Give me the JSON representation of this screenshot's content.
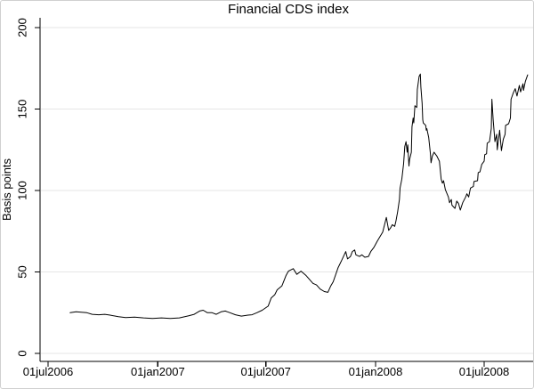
{
  "window": {
    "background": "#ffffff",
    "border_color": "#d0d0d0"
  },
  "chart_data": {
    "type": "line",
    "title": "Financial CDS index",
    "xlabel": "",
    "ylabel": "Basis points",
    "ylim": [
      0,
      200
    ],
    "y_ticks": [
      0,
      50,
      100,
      150,
      200
    ],
    "x_ticks": [
      {
        "label": "01jul2006",
        "date": "2006-07-01"
      },
      {
        "label": "01jan2007",
        "date": "2007-01-01"
      },
      {
        "label": "01jul2007",
        "date": "2007-07-01"
      },
      {
        "label": "01jan2008",
        "date": "2008-01-01"
      },
      {
        "label": "01jul2008",
        "date": "2008-07-01"
      }
    ],
    "grid": "horizontal-only",
    "legend": "none",
    "line_color": "#000000",
    "grid_color": "#e6e6e6",
    "axis_color": "#000000",
    "text_color": "#000000",
    "series": [
      {
        "name": "Financial CDS index",
        "points": [
          [
            "2006-08-07",
            25
          ],
          [
            "2006-08-17",
            25.5
          ],
          [
            "2006-08-28",
            25.2
          ],
          [
            "2006-09-04",
            25
          ],
          [
            "2006-09-13",
            24
          ],
          [
            "2006-09-24",
            23.7
          ],
          [
            "2006-10-04",
            24
          ],
          [
            "2006-10-13",
            23.5
          ],
          [
            "2006-10-27",
            22.5
          ],
          [
            "2006-11-08",
            22
          ],
          [
            "2006-11-23",
            22.3
          ],
          [
            "2006-12-08",
            21.8
          ],
          [
            "2006-12-23",
            21.5
          ],
          [
            "2007-01-07",
            21.8
          ],
          [
            "2007-01-22",
            21.5
          ],
          [
            "2007-02-06",
            21.8
          ],
          [
            "2007-02-21",
            23
          ],
          [
            "2007-03-03",
            24
          ],
          [
            "2007-03-12",
            26
          ],
          [
            "2007-03-18",
            26.5
          ],
          [
            "2007-03-25",
            25
          ],
          [
            "2007-04-02",
            25
          ],
          [
            "2007-04-09",
            24
          ],
          [
            "2007-04-17",
            25.5
          ],
          [
            "2007-04-24",
            26
          ],
          [
            "2007-05-02",
            25
          ],
          [
            "2007-05-11",
            23.7
          ],
          [
            "2007-05-21",
            22.9
          ],
          [
            "2007-06-01",
            23.5
          ],
          [
            "2007-06-08",
            23.7
          ],
          [
            "2007-06-16",
            25
          ],
          [
            "2007-06-25",
            26.5
          ],
          [
            "2007-07-05",
            29
          ],
          [
            "2007-07-10",
            34
          ],
          [
            "2007-07-16",
            36
          ],
          [
            "2007-07-20",
            39
          ],
          [
            "2007-07-28",
            41.5
          ],
          [
            "2007-08-04",
            48
          ],
          [
            "2007-08-08",
            50.5
          ],
          [
            "2007-08-16",
            52
          ],
          [
            "2007-08-22",
            48.5
          ],
          [
            "2007-08-29",
            50.5
          ],
          [
            "2007-09-06",
            48
          ],
          [
            "2007-09-13",
            45
          ],
          [
            "2007-09-18",
            43
          ],
          [
            "2007-09-24",
            42
          ],
          [
            "2007-09-30",
            39.5
          ],
          [
            "2007-10-07",
            38
          ],
          [
            "2007-10-13",
            37.5
          ],
          [
            "2007-10-18",
            41.5
          ],
          [
            "2007-10-22",
            44
          ],
          [
            "2007-10-30",
            52.5
          ],
          [
            "2007-11-05",
            57
          ],
          [
            "2007-11-12",
            62.5
          ],
          [
            "2007-11-15",
            58
          ],
          [
            "2007-11-20",
            59.5
          ],
          [
            "2007-11-23",
            62.5
          ],
          [
            "2007-11-27",
            63.5
          ],
          [
            "2007-11-29",
            60.5
          ],
          [
            "2007-12-05",
            59.5
          ],
          [
            "2007-12-09",
            60.5
          ],
          [
            "2007-12-14",
            59
          ],
          [
            "2007-12-20",
            59.5
          ],
          [
            "2007-12-24",
            62.5
          ],
          [
            "2007-12-29",
            65
          ],
          [
            "2008-01-04",
            69
          ],
          [
            "2008-01-08",
            71.5
          ],
          [
            "2008-01-13",
            74.5
          ],
          [
            "2008-01-16",
            79
          ],
          [
            "2008-01-19",
            83.5
          ],
          [
            "2008-01-23",
            75.5
          ],
          [
            "2008-01-26",
            77
          ],
          [
            "2008-01-29",
            79
          ],
          [
            "2008-02-02",
            78
          ],
          [
            "2008-02-04",
            81
          ],
          [
            "2008-02-07",
            87
          ],
          [
            "2008-02-10",
            94.5
          ],
          [
            "2008-02-11",
            101.5
          ],
          [
            "2008-02-14",
            107
          ],
          [
            "2008-02-17",
            116.5
          ],
          [
            "2008-02-19",
            127
          ],
          [
            "2008-02-21",
            130
          ],
          [
            "2008-02-23",
            123.5
          ],
          [
            "2008-02-24",
            128
          ],
          [
            "2008-02-26",
            115
          ],
          [
            "2008-02-27",
            119
          ],
          [
            "2008-03-01",
            123.5
          ],
          [
            "2008-03-02",
            139
          ],
          [
            "2008-03-04",
            144.5
          ],
          [
            "2008-03-05",
            141.5
          ],
          [
            "2008-03-07",
            152
          ],
          [
            "2008-03-10",
            151
          ],
          [
            "2008-03-11",
            162
          ],
          [
            "2008-03-14",
            170
          ],
          [
            "2008-03-16",
            171.5
          ],
          [
            "2008-03-17",
            163.5
          ],
          [
            "2008-03-19",
            153.5
          ],
          [
            "2008-03-20",
            143.5
          ],
          [
            "2008-03-21",
            141.5
          ],
          [
            "2008-03-25",
            140
          ],
          [
            "2008-03-26",
            137
          ],
          [
            "2008-03-27",
            138
          ],
          [
            "2008-03-30",
            132.5
          ],
          [
            "2008-04-02",
            122
          ],
          [
            "2008-04-03",
            117
          ],
          [
            "2008-04-05",
            121
          ],
          [
            "2008-04-08",
            123.5
          ],
          [
            "2008-04-13",
            121
          ],
          [
            "2008-04-17",
            118
          ],
          [
            "2008-04-20",
            107
          ],
          [
            "2008-04-22",
            104.5
          ],
          [
            "2008-04-24",
            106
          ],
          [
            "2008-04-27",
            100.5
          ],
          [
            "2008-05-02",
            96
          ],
          [
            "2008-05-04",
            92.5
          ],
          [
            "2008-05-07",
            94.5
          ],
          [
            "2008-05-08",
            91
          ],
          [
            "2008-05-13",
            89
          ],
          [
            "2008-05-16",
            93.5
          ],
          [
            "2008-05-19",
            92
          ],
          [
            "2008-05-22",
            88
          ],
          [
            "2008-05-26",
            92.5
          ],
          [
            "2008-05-31",
            96
          ],
          [
            "2008-06-02",
            98
          ],
          [
            "2008-06-05",
            96
          ],
          [
            "2008-06-08",
            101.5
          ],
          [
            "2008-06-13",
            102.5
          ],
          [
            "2008-06-14",
            105.5
          ],
          [
            "2008-06-20",
            106
          ],
          [
            "2008-06-21",
            111
          ],
          [
            "2008-06-24",
            111.5
          ],
          [
            "2008-06-27",
            116
          ],
          [
            "2008-07-01",
            118
          ],
          [
            "2008-07-02",
            122
          ],
          [
            "2008-07-05",
            122.5
          ],
          [
            "2008-07-06",
            129
          ],
          [
            "2008-07-10",
            130
          ],
          [
            "2008-07-13",
            138
          ],
          [
            "2008-07-14",
            156
          ],
          [
            "2008-07-16",
            143.5
          ],
          [
            "2008-07-19",
            130
          ],
          [
            "2008-07-22",
            134.5
          ],
          [
            "2008-07-23",
            125
          ],
          [
            "2008-07-27",
            137
          ],
          [
            "2008-07-30",
            124.5
          ],
          [
            "2008-08-02",
            131.5
          ],
          [
            "2008-08-05",
            134.5
          ],
          [
            "2008-08-06",
            140
          ],
          [
            "2008-08-11",
            141
          ],
          [
            "2008-08-14",
            144.5
          ],
          [
            "2008-08-15",
            156
          ],
          [
            "2008-08-19",
            160
          ],
          [
            "2008-08-22",
            162.5
          ],
          [
            "2008-08-25",
            158
          ],
          [
            "2008-08-29",
            164.5
          ],
          [
            "2008-08-31",
            160.5
          ],
          [
            "2008-09-04",
            165.5
          ],
          [
            "2008-09-05",
            161.5
          ],
          [
            "2008-09-08",
            167
          ],
          [
            "2008-09-12",
            171
          ]
        ]
      }
    ]
  }
}
